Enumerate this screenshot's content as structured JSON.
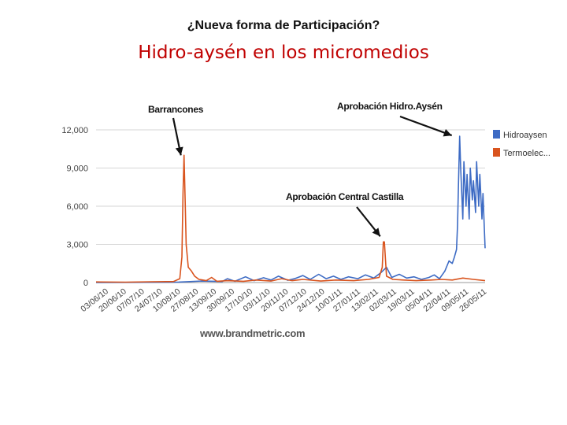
{
  "header": {
    "super_title": "¿Nueva forma de Participación?",
    "title": "Hidro-aysén en los micromedios"
  },
  "watermark": "www.brandmetric.com",
  "chart_data": {
    "type": "line",
    "title": "",
    "xlabel": "",
    "ylabel": "",
    "ylim": [
      0,
      12000
    ],
    "y_ticks": [
      "0",
      "3,000",
      "6,000",
      "9,000",
      "12,000"
    ],
    "grid": true,
    "legend_position": "right",
    "x_tick_labels": [
      "03/06/10",
      "20/06/10",
      "07/07/10",
      "24/07/10",
      "10/08/10",
      "27/08/10",
      "13/09/10",
      "30/09/10",
      "17/10/10",
      "03/11/10",
      "20/11/10",
      "07/12/10",
      "24/12/10",
      "10/01/11",
      "27/01/11",
      "13/02/11",
      "02/03/11",
      "19/03/11",
      "05/04/11",
      "22/04/11",
      "09/05/11",
      "26/05/11"
    ],
    "x_range": [
      "2010-06-03",
      "2011-06-05"
    ],
    "series": [
      {
        "name": "Hidroaysen",
        "color": "#3d6bc4",
        "points": [
          [
            "2010-06-03",
            0
          ],
          [
            "2010-07-20",
            20
          ],
          [
            "2010-08-20",
            40
          ],
          [
            "2010-09-10",
            120
          ],
          [
            "2010-09-30",
            80
          ],
          [
            "2010-10-05",
            300
          ],
          [
            "2010-10-12",
            100
          ],
          [
            "2010-10-22",
            450
          ],
          [
            "2010-10-30",
            150
          ],
          [
            "2010-11-08",
            380
          ],
          [
            "2010-11-15",
            200
          ],
          [
            "2010-11-22",
            500
          ],
          [
            "2010-12-01",
            180
          ],
          [
            "2010-12-08",
            320
          ],
          [
            "2010-12-15",
            550
          ],
          [
            "2010-12-22",
            250
          ],
          [
            "2010-12-30",
            650
          ],
          [
            "2011-01-06",
            300
          ],
          [
            "2011-01-13",
            500
          ],
          [
            "2011-01-20",
            250
          ],
          [
            "2011-01-27",
            450
          ],
          [
            "2011-02-05",
            300
          ],
          [
            "2011-02-12",
            600
          ],
          [
            "2011-02-20",
            350
          ],
          [
            "2011-02-27",
            800
          ],
          [
            "2011-03-04",
            1200
          ],
          [
            "2011-03-09",
            400
          ],
          [
            "2011-03-16",
            650
          ],
          [
            "2011-03-23",
            350
          ],
          [
            "2011-03-30",
            450
          ],
          [
            "2011-04-06",
            250
          ],
          [
            "2011-04-13",
            400
          ],
          [
            "2011-04-18",
            600
          ],
          [
            "2011-04-23",
            300
          ],
          [
            "2011-04-28",
            900
          ],
          [
            "2011-05-02",
            1700
          ],
          [
            "2011-05-05",
            1500
          ],
          [
            "2011-05-07",
            2000
          ],
          [
            "2011-05-09",
            2600
          ],
          [
            "2011-05-10",
            4500
          ],
          [
            "2011-05-11",
            8000
          ],
          [
            "2011-05-12",
            11500
          ],
          [
            "2011-05-13",
            9000
          ],
          [
            "2011-05-15",
            5000
          ],
          [
            "2011-05-16",
            9500
          ],
          [
            "2011-05-18",
            6000
          ],
          [
            "2011-05-19",
            8500
          ],
          [
            "2011-05-21",
            5000
          ],
          [
            "2011-05-22",
            9000
          ],
          [
            "2011-05-24",
            6500
          ],
          [
            "2011-05-25",
            8000
          ],
          [
            "2011-05-27",
            5500
          ],
          [
            "2011-05-28",
            9500
          ],
          [
            "2011-05-30",
            6000
          ],
          [
            "2011-05-31",
            8500
          ],
          [
            "2011-06-02",
            5000
          ],
          [
            "2011-06-03",
            7000
          ],
          [
            "2011-06-05",
            2700
          ]
        ]
      },
      {
        "name": "Termoelec...",
        "color": "#d9541e",
        "points": [
          [
            "2010-06-03",
            50
          ],
          [
            "2010-07-01",
            30
          ],
          [
            "2010-07-25",
            60
          ],
          [
            "2010-08-15",
            80
          ],
          [
            "2010-08-21",
            300
          ],
          [
            "2010-08-23",
            2000
          ],
          [
            "2010-08-24",
            7000
          ],
          [
            "2010-08-25",
            10000
          ],
          [
            "2010-08-26",
            6500
          ],
          [
            "2010-08-27",
            3000
          ],
          [
            "2010-08-29",
            1200
          ],
          [
            "2010-09-01",
            900
          ],
          [
            "2010-09-04",
            500
          ],
          [
            "2010-09-08",
            250
          ],
          [
            "2010-09-15",
            150
          ],
          [
            "2010-09-20",
            400
          ],
          [
            "2010-09-25",
            100
          ],
          [
            "2010-10-05",
            150
          ],
          [
            "2010-10-20",
            100
          ],
          [
            "2010-11-01",
            200
          ],
          [
            "2010-11-15",
            120
          ],
          [
            "2010-11-25",
            300
          ],
          [
            "2010-12-05",
            150
          ],
          [
            "2010-12-15",
            250
          ],
          [
            "2011-01-01",
            120
          ],
          [
            "2011-01-15",
            200
          ],
          [
            "2011-02-01",
            150
          ],
          [
            "2011-02-15",
            250
          ],
          [
            "2011-02-25",
            400
          ],
          [
            "2011-02-28",
            1200
          ],
          [
            "2011-03-01",
            3200
          ],
          [
            "2011-03-02",
            3200
          ],
          [
            "2011-03-04",
            500
          ],
          [
            "2011-03-10",
            250
          ],
          [
            "2011-03-20",
            200
          ],
          [
            "2011-04-01",
            150
          ],
          [
            "2011-04-15",
            200
          ],
          [
            "2011-04-25",
            250
          ],
          [
            "2011-05-05",
            200
          ],
          [
            "2011-05-15",
            350
          ],
          [
            "2011-05-25",
            250
          ],
          [
            "2011-06-05",
            150
          ]
        ]
      }
    ],
    "annotations": [
      {
        "label": "Barrancones",
        "date": "2010-08-25",
        "value": 10000
      },
      {
        "label": "Aprobación Hidro.Aysén",
        "date": "2011-05-12",
        "value": 11500
      },
      {
        "label": "Aprobación Central Castilla",
        "date": "2011-03-01",
        "value": 3200
      }
    ]
  }
}
